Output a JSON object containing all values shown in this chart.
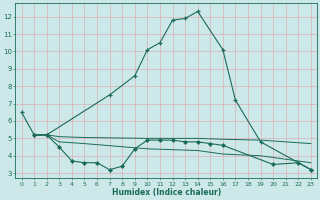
{
  "xlabel": "Humidex (Indice chaleur)",
  "bg_color": "#cde8e8",
  "grid_color": "#d9b0b0",
  "line_color": "#1a6b5a",
  "xlim": [
    -0.5,
    23.5
  ],
  "ylim": [
    2.7,
    12.8
  ],
  "yticks": [
    3,
    4,
    5,
    6,
    7,
    8,
    9,
    10,
    11,
    12
  ],
  "xticks": [
    0,
    1,
    2,
    3,
    4,
    5,
    6,
    7,
    8,
    9,
    10,
    11,
    12,
    13,
    14,
    15,
    16,
    17,
    18,
    19,
    20,
    21,
    22,
    23
  ],
  "series_main": {
    "x": [
      0,
      1,
      2,
      7,
      9,
      10,
      11,
      12,
      13,
      14,
      16,
      17,
      19,
      23
    ],
    "y": [
      6.5,
      5.2,
      5.2,
      7.5,
      8.6,
      10.1,
      10.5,
      11.8,
      11.9,
      12.3,
      10.1,
      7.2,
      4.8,
      3.2
    ]
  },
  "series_lower": {
    "x": [
      1,
      2,
      3,
      4,
      5,
      6,
      7,
      8,
      9,
      10,
      11,
      12,
      13,
      14,
      15,
      16,
      20,
      22,
      23
    ],
    "y": [
      5.2,
      5.2,
      4.5,
      3.7,
      3.6,
      3.6,
      3.2,
      3.4,
      4.4,
      4.9,
      4.9,
      4.9,
      4.8,
      4.8,
      4.7,
      4.6,
      3.5,
      3.6,
      3.2
    ]
  },
  "series_band1": {
    "x": [
      1,
      2,
      3,
      5,
      10,
      14,
      16,
      19,
      20,
      21,
      22,
      23
    ],
    "y": [
      5.2,
      5.2,
      5.1,
      5.05,
      5.0,
      5.0,
      4.95,
      4.9,
      4.85,
      4.8,
      4.75,
      4.7
    ]
  },
  "series_band2": {
    "x": [
      1,
      2,
      3,
      5,
      10,
      14,
      16,
      19,
      20,
      21,
      22,
      23
    ],
    "y": [
      5.2,
      5.2,
      4.8,
      4.7,
      4.4,
      4.3,
      4.1,
      4.0,
      3.9,
      3.8,
      3.7,
      3.6
    ]
  }
}
